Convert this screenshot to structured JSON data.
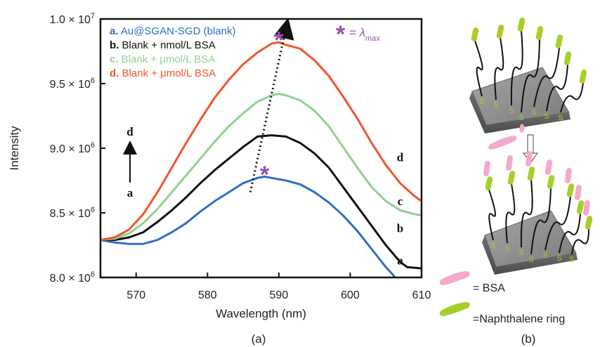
{
  "chart_data": {
    "type": "line",
    "title": "",
    "xlabel": "Wavelength (nm)",
    "ylabel": "Intensity",
    "xlim": [
      565,
      610
    ],
    "ylim": [
      8000000,
      10000000
    ],
    "x_ticks": [
      570,
      580,
      590,
      600,
      610
    ],
    "y_ticks": [
      {
        "value": 8000000,
        "mantissa": "8.0",
        "exp": "6"
      },
      {
        "value": 8500000,
        "mantissa": "8.5",
        "exp": "6"
      },
      {
        "value": 9000000,
        "mantissa": "9.0",
        "exp": "6"
      },
      {
        "value": 9500000,
        "mantissa": "9.5",
        "exp": "6"
      },
      {
        "value": 10000000,
        "mantissa": "1.0",
        "exp": "7"
      }
    ],
    "legend_position": "top-left",
    "legend": [
      {
        "letter": "a.",
        "text": " Au@SGAN-SGD (blank)",
        "color": "#2e6fc6"
      },
      {
        "letter": "b.",
        "text": " Blank + nmol/L BSA",
        "color": "#111111"
      },
      {
        "letter": "c.",
        "text": " Blank + μmol/L BSA",
        "color": "#8fd28f"
      },
      {
        "letter": "d.",
        "text": " Blank + μmol/L BSA",
        "color": "#f2552c"
      }
    ],
    "series": [
      {
        "label": "a",
        "color": "#2e6fc6",
        "x": [
          565,
          567,
          569,
          571,
          573,
          575,
          577,
          579,
          581,
          583,
          585,
          587,
          588,
          589,
          591,
          593,
          595,
          597,
          599,
          601,
          603,
          605,
          606,
          607
        ],
        "y": [
          8290000,
          8270000,
          8260000,
          8260000,
          8290000,
          8350000,
          8420000,
          8510000,
          8590000,
          8660000,
          8730000,
          8770000,
          8780000,
          8770000,
          8750000,
          8720000,
          8660000,
          8580000,
          8480000,
          8360000,
          8220000,
          8080000,
          8020000,
          7950000
        ]
      },
      {
        "label": "b",
        "color": "#111111",
        "x": [
          565,
          567,
          569,
          571,
          573,
          575,
          577,
          579,
          581,
          583,
          585,
          587,
          589,
          591,
          593,
          595,
          597,
          599,
          601,
          603,
          605,
          607,
          608,
          610
        ],
        "y": [
          8290000,
          8290000,
          8310000,
          8350000,
          8430000,
          8520000,
          8620000,
          8730000,
          8830000,
          8920000,
          9010000,
          9090000,
          9100000,
          9090000,
          9040000,
          8960000,
          8850000,
          8700000,
          8550000,
          8400000,
          8250000,
          8120000,
          8080000,
          8070000
        ]
      },
      {
        "label": "c",
        "color": "#8fd28f",
        "x": [
          565,
          567,
          569,
          571,
          573,
          575,
          577,
          579,
          581,
          583,
          585,
          587,
          589,
          590,
          591,
          593,
          595,
          597,
          599,
          601,
          603,
          605,
          607,
          609,
          610
        ],
        "y": [
          8290000,
          8300000,
          8340000,
          8420000,
          8530000,
          8660000,
          8790000,
          8920000,
          9050000,
          9170000,
          9270000,
          9360000,
          9410000,
          9420000,
          9410000,
          9370000,
          9290000,
          9170000,
          9010000,
          8850000,
          8700000,
          8590000,
          8520000,
          8490000,
          8480000
        ]
      },
      {
        "label": "d",
        "color": "#f2552c",
        "x": [
          565,
          567,
          569,
          571,
          573,
          575,
          577,
          579,
          581,
          583,
          585,
          587,
          589,
          590,
          591,
          593,
          595,
          597,
          599,
          601,
          603,
          605,
          607,
          609,
          610
        ],
        "y": [
          8290000,
          8310000,
          8370000,
          8490000,
          8660000,
          8850000,
          9040000,
          9220000,
          9390000,
          9530000,
          9650000,
          9740000,
          9810000,
          9820000,
          9800000,
          9770000,
          9680000,
          9560000,
          9400000,
          9230000,
          9040000,
          8870000,
          8730000,
          8630000,
          8590000
        ]
      }
    ],
    "curve_end_labels": [
      {
        "text": "a",
        "x": 607,
        "y": 8100000
      },
      {
        "text": "b",
        "x": 607,
        "y": 8350000
      },
      {
        "text": "c",
        "x": 607,
        "y": 8560000
      },
      {
        "text": "d",
        "x": 607,
        "y": 8900000
      }
    ],
    "arrow_indicator": {
      "top": "d",
      "bottom": "a"
    },
    "trend_arrow": {
      "from": [
        586,
        8660000
      ],
      "to": [
        591,
        9930000
      ],
      "style": "dotted"
    },
    "lambda_max_markers": [
      {
        "symbol": "*",
        "x": 588,
        "y": 8810000
      },
      {
        "symbol": "*",
        "x": 590,
        "y": 9850000
      }
    ],
    "lambda_max_legend": {
      "symbol": "*",
      "text": "= λ",
      "subscript": "max",
      "color": "#9c4fb8"
    }
  },
  "panel_labels": {
    "left": "(a)",
    "right": "(b)"
  },
  "schematic": {
    "bsa_label": "= BSA",
    "naphthalene_label": "=Naphthalene ring",
    "bsa_color": "#f4a8cc",
    "naphthalene_color": "#a6cf2a",
    "sulfur_letter": "S",
    "surface_color": "#8c8c8c"
  }
}
